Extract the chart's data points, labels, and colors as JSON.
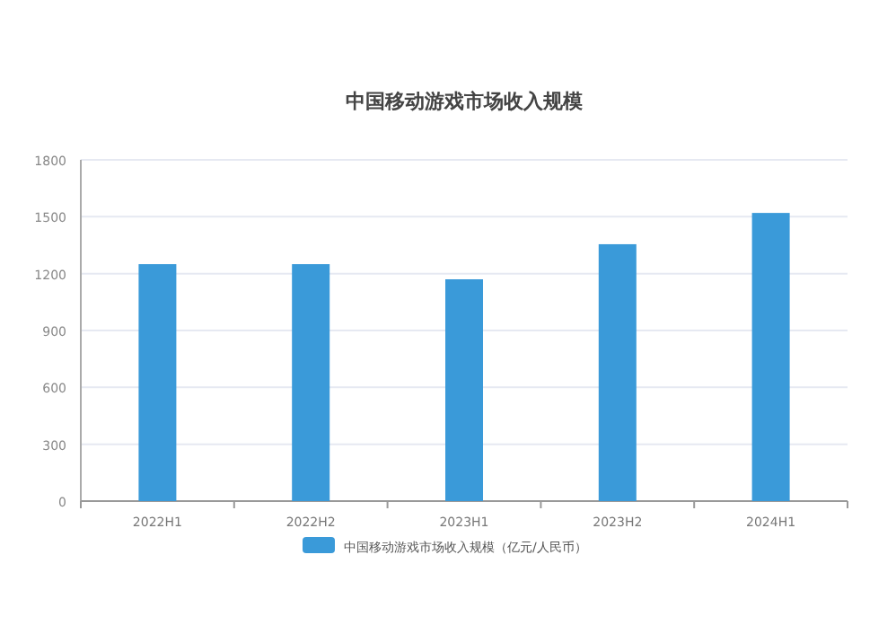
{
  "chart_data": {
    "type": "bar",
    "title": "中国移动游戏市场收入规模",
    "categories": [
      "2022H1",
      "2022H2",
      "2023H1",
      "2023H2",
      "2024H1"
    ],
    "series": [
      {
        "name": "中国移动游戏市场收入规模（亿元/人民币）",
        "color": "#3a9ad9",
        "values": [
          1250,
          1250,
          1170,
          1355,
          1520
        ]
      }
    ],
    "ylim": [
      0,
      1800
    ],
    "yticks": [
      0,
      300,
      600,
      900,
      1200,
      1500,
      1800
    ],
    "grid": "y",
    "legend": "bottom"
  }
}
